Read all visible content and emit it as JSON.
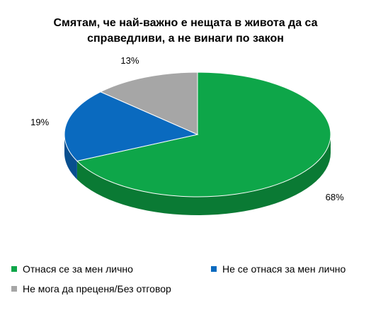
{
  "chart_data": {
    "type": "pie",
    "title": [
      "Смятам, че най-важно е нещата в живота да са",
      "справедливи, а не винаги по закон"
    ],
    "slices": [
      {
        "name": "Отнася се за мен лично",
        "value": 68,
        "label": "68%",
        "color": "#0ea649",
        "dark": "#0a7a34"
      },
      {
        "name": "Не се отнася за мен лично",
        "value": 19,
        "label": "19%",
        "color": "#0a6abf",
        "dark": "#084f8f"
      },
      {
        "name": "Не мога да преценя/Без отговор",
        "value": 13,
        "label": "13%",
        "color": "#a6a6a6",
        "dark": "#7a7a7a"
      }
    ],
    "legend_position": "bottom"
  }
}
